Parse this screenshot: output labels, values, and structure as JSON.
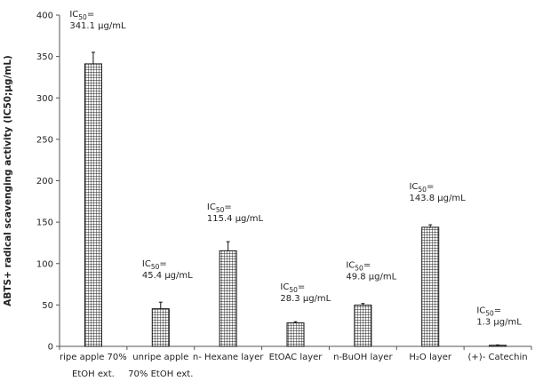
{
  "chart_data": {
    "type": "bar",
    "title": "",
    "xlabel": "",
    "ylabel": "ABTS+ radical scavenging activity (IC50;μg/mL)",
    "ylim": [
      0,
      400
    ],
    "yticks": [
      0,
      50,
      100,
      150,
      200,
      250,
      300,
      350,
      400
    ],
    "grid": false,
    "legend": "none",
    "bar_pattern": "grid-hatch",
    "colors": {
      "bar_line": "#111111",
      "axis": "#555555",
      "text": "#222222"
    },
    "categories": [
      {
        "line1": "ripe apple 70%",
        "line2": "EtOH ext."
      },
      {
        "line1": "unripe apple",
        "line2": "70% EtOH ext."
      },
      {
        "line1": "n- Hexane layer",
        "line2": ""
      },
      {
        "line1": "EtOAC layer",
        "line2": ""
      },
      {
        "line1": "n-BuOH layer",
        "line2": ""
      },
      {
        "line1": "H₂O layer",
        "line2": ""
      },
      {
        "line1": "(+)- Catechin",
        "line2": ""
      }
    ],
    "values": [
      341.1,
      45.4,
      115.4,
      28.3,
      49.8,
      143.8,
      1.3
    ],
    "errors": [
      14,
      8,
      11,
      1.5,
      2,
      3,
      0.5
    ],
    "annotations": [
      {
        "label": "IC50=",
        "value": "341.1 μg/mL"
      },
      {
        "label": "IC50=",
        "value": "45.4 μg/mL"
      },
      {
        "label": "IC50=",
        "value": "115.4 μg/mL"
      },
      {
        "label": "IC50=",
        "value": "28.3 μg/mL"
      },
      {
        "label": "IC50=",
        "value": "49.8 μg/mL"
      },
      {
        "label": "IC50=",
        "value": "143.8 μg/mL"
      },
      {
        "label": "IC50=",
        "value": "1.3 μg/mL"
      }
    ]
  }
}
